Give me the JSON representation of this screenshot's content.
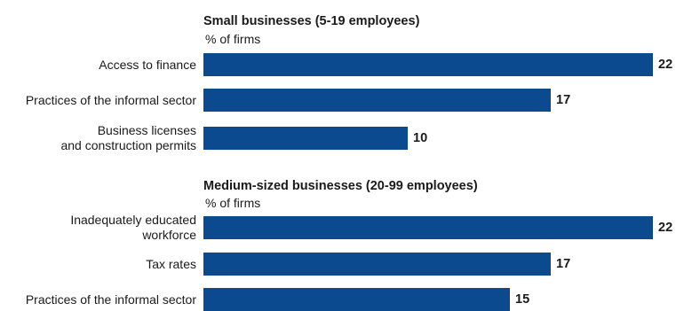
{
  "chart_data": [
    {
      "type": "bar",
      "orientation": "horizontal",
      "title": "Small businesses (5-19 employees)",
      "unit_label": "% of firms",
      "categories": [
        [
          "Access to finance"
        ],
        [
          "Practices of the informal sector"
        ],
        [
          "Business licenses",
          "and construction permits"
        ]
      ],
      "values": [
        22,
        17,
        10
      ],
      "color": "#0b4a8f",
      "xlim": [
        0,
        22
      ]
    },
    {
      "type": "bar",
      "orientation": "horizontal",
      "title": "Medium-sized businesses (20-99 employees)",
      "unit_label": "% of firms",
      "categories": [
        [
          "Inadequately educated",
          "workforce"
        ],
        [
          "Tax rates"
        ],
        [
          "Practices of the informal sector"
        ]
      ],
      "values": [
        22,
        17,
        15
      ],
      "color": "#0b4a8f",
      "xlim": [
        0,
        22
      ]
    }
  ]
}
